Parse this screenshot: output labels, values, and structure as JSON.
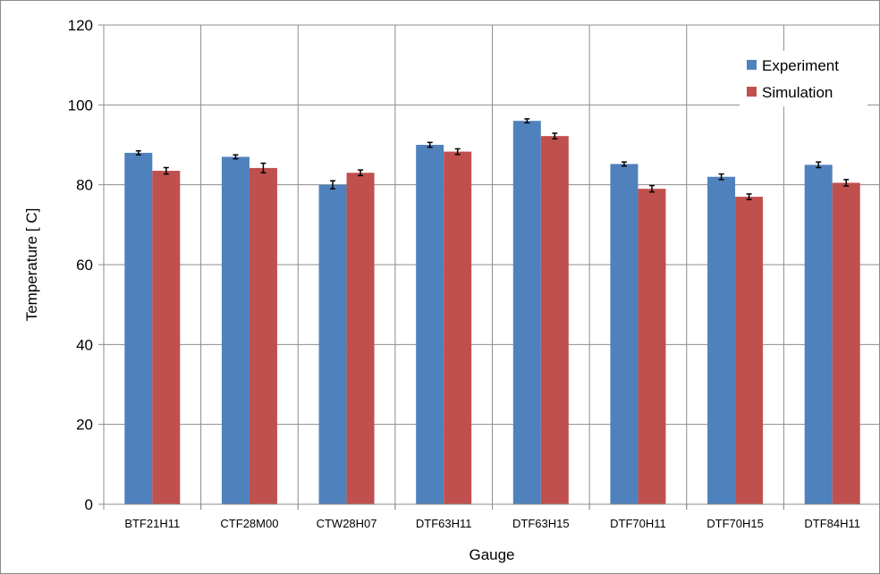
{
  "chart_data": {
    "type": "bar",
    "xlabel": "Gauge",
    "ylabel": "Temperature [ C]",
    "ylim": [
      0,
      120
    ],
    "yticks": [
      "0",
      "20",
      "40",
      "60",
      "80",
      "100",
      "120"
    ],
    "categories": [
      "BTF21H11",
      "CTF28M00",
      "CTW28H07",
      "DTF63H11",
      "DTF63H15",
      "DTF70H11",
      "DTF70H15",
      "DTF84H11"
    ],
    "series": [
      {
        "name": "Experiment",
        "color": "#4f81bd",
        "values": [
          88,
          87,
          80,
          90,
          96,
          85.2,
          82,
          85
        ],
        "errors": [
          0.5,
          0.5,
          1,
          0.6,
          0.5,
          0.5,
          0.7,
          0.7
        ]
      },
      {
        "name": "Simulation",
        "color": "#c0504d",
        "values": [
          83.5,
          84.2,
          83,
          88.3,
          92.2,
          79,
          77,
          80.5
        ],
        "errors": [
          0.8,
          1.2,
          0.7,
          0.7,
          0.7,
          0.8,
          0.7,
          0.8
        ]
      }
    ],
    "grid": true,
    "gridlines": "horizontal and vertical category separators",
    "legend_position": "top-right"
  }
}
